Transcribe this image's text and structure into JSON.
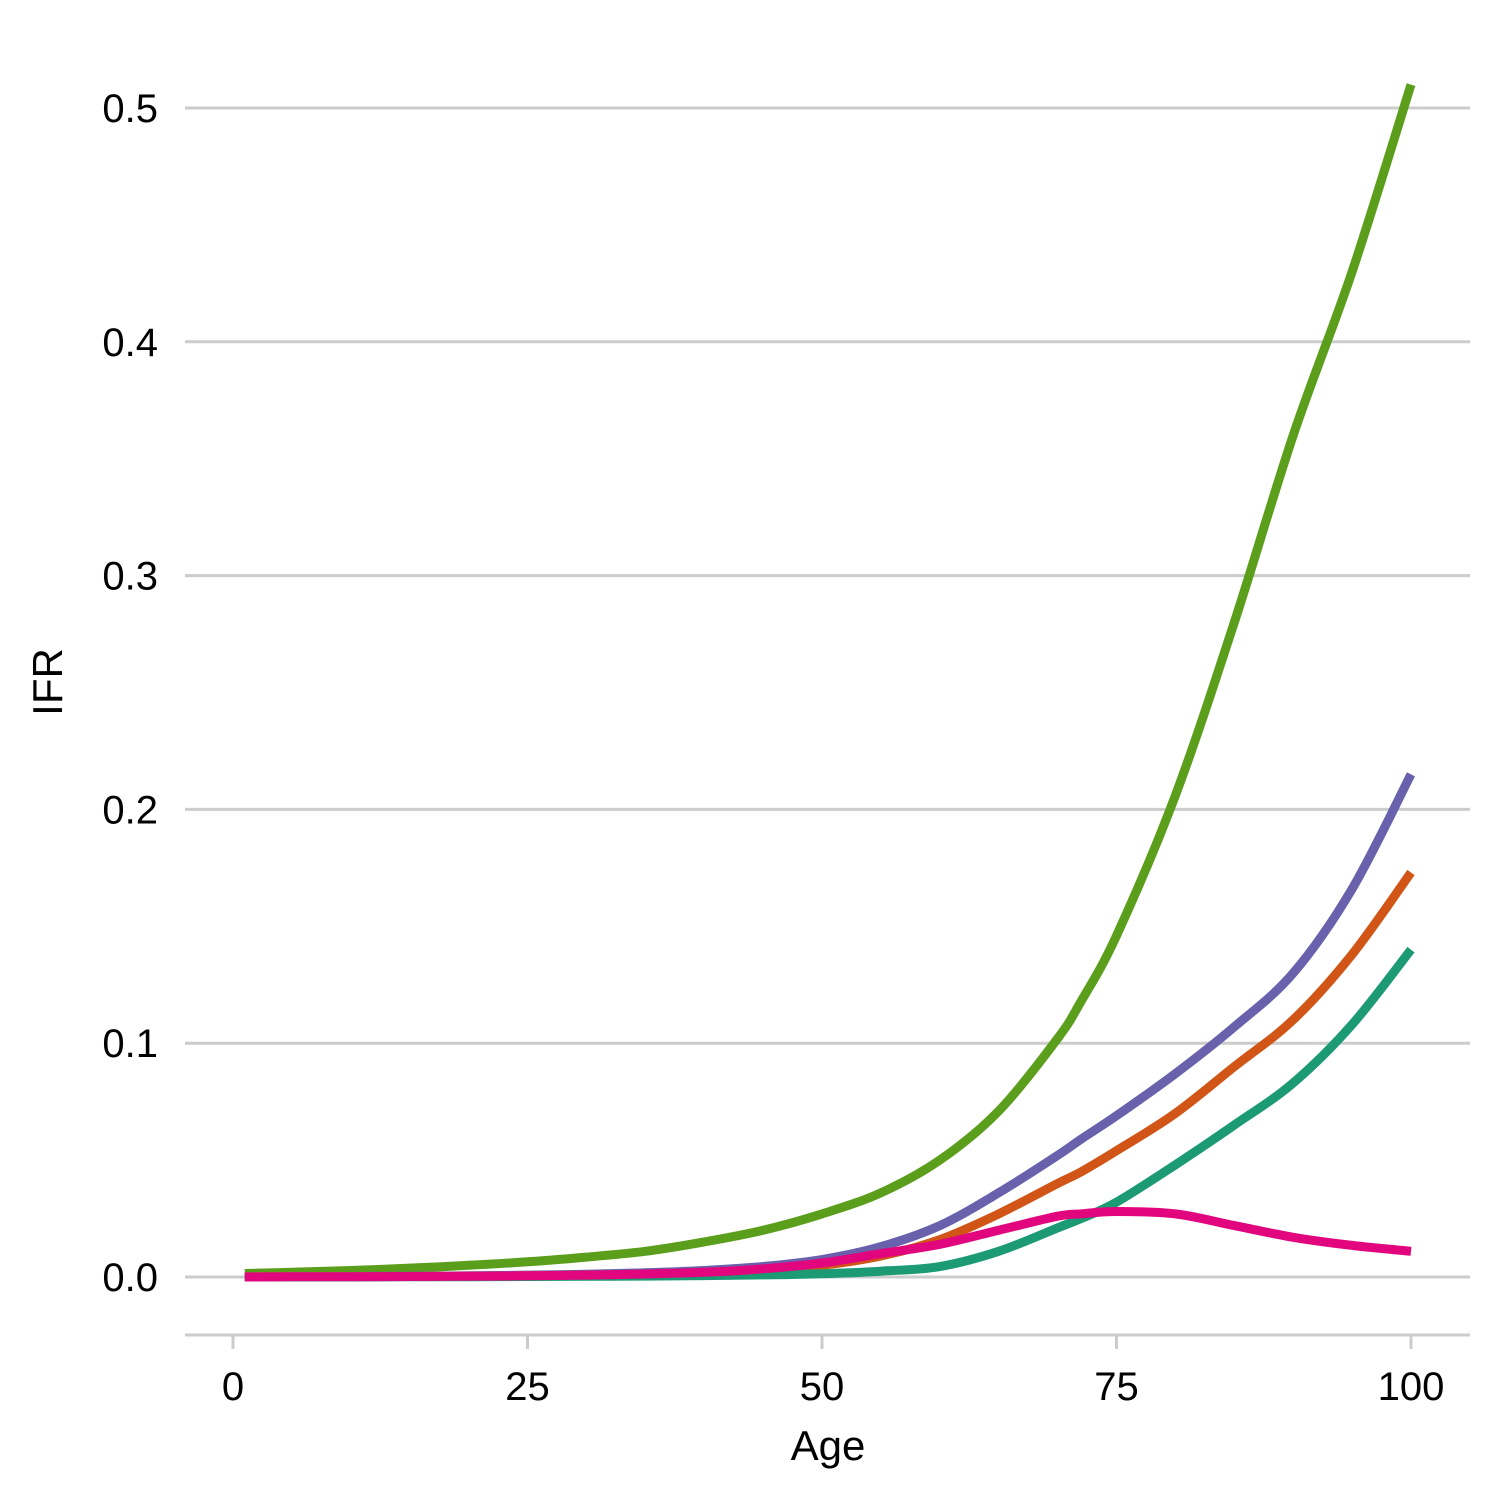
{
  "chart_data": {
    "type": "line",
    "title": "",
    "xlabel": "Age",
    "ylabel": "IFR",
    "xlim": [
      -4,
      105
    ],
    "ylim": [
      -0.025,
      0.53
    ],
    "x_ticks": [
      0,
      25,
      50,
      75,
      100
    ],
    "x_tick_labels": [
      "0",
      "25",
      "50",
      "75",
      "100"
    ],
    "y_ticks": [
      0.0,
      0.1,
      0.2,
      0.3,
      0.4,
      0.5
    ],
    "y_tick_labels": [
      "0.0",
      "0.1",
      "0.2",
      "0.3",
      "0.4",
      "0.5"
    ],
    "grid": "horizontal",
    "legend": "none",
    "x": [
      1,
      5,
      10,
      15,
      20,
      25,
      30,
      35,
      40,
      45,
      50,
      55,
      60,
      65,
      70,
      72,
      75,
      80,
      85,
      90,
      95,
      100
    ],
    "series": [
      {
        "color": "#5a9e1c",
        "values": [
          0.0015,
          0.002,
          0.0028,
          0.0038,
          0.005,
          0.0065,
          0.0085,
          0.011,
          0.015,
          0.02,
          0.027,
          0.036,
          0.05,
          0.071,
          0.102,
          0.118,
          0.146,
          0.206,
          0.28,
          0.36,
          0.43,
          0.51
        ]
      },
      {
        "color": "#6a61ad",
        "values": [
          0.0001,
          0.0001,
          0.0002,
          0.0003,
          0.0005,
          0.0008,
          0.0012,
          0.0018,
          0.0028,
          0.0045,
          0.0075,
          0.013,
          0.022,
          0.036,
          0.052,
          0.059,
          0.069,
          0.087,
          0.107,
          0.13,
          0.166,
          0.215
        ]
      },
      {
        "color": "#d05516",
        "values": [
          0.0001,
          0.0001,
          0.0001,
          0.0002,
          0.0003,
          0.0005,
          0.0008,
          0.0012,
          0.0019,
          0.003,
          0.005,
          0.009,
          0.016,
          0.027,
          0.04,
          0.045,
          0.054,
          0.07,
          0.09,
          0.11,
          0.138,
          0.173
        ]
      },
      {
        "color": "#1b9a73",
        "values": [
          0.0,
          0.0,
          0.0,
          0.0001,
          0.0001,
          0.0002,
          0.0003,
          0.0004,
          0.0006,
          0.0009,
          0.0014,
          0.0025,
          0.0045,
          0.011,
          0.021,
          0.025,
          0.032,
          0.048,
          0.065,
          0.083,
          0.108,
          0.14
        ]
      },
      {
        "color": "#e2067e",
        "values": [
          0.0,
          0.0001,
          0.0001,
          0.0002,
          0.0003,
          0.0005,
          0.0008,
          0.0013,
          0.002,
          0.0035,
          0.006,
          0.01,
          0.014,
          0.02,
          0.026,
          0.027,
          0.028,
          0.027,
          0.022,
          0.017,
          0.0135,
          0.011
        ]
      }
    ]
  }
}
